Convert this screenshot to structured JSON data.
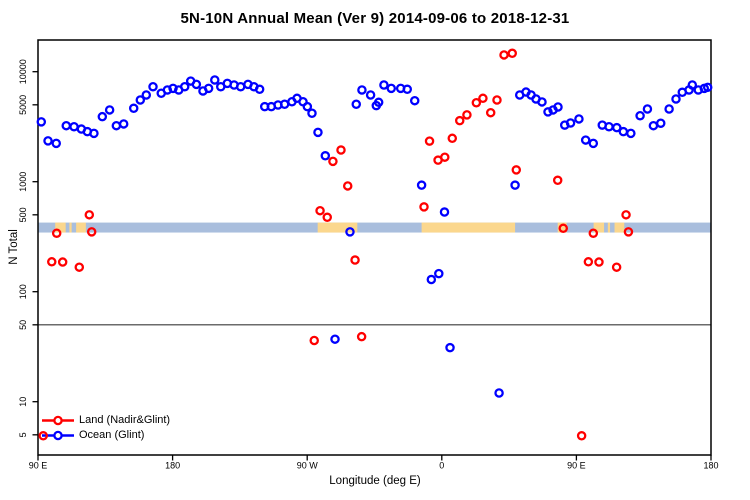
{
  "chart_data": {
    "type": "scatter",
    "title": "5N-10N Annual Mean (Ver 9)   2014-09-06 to 2018-12-31",
    "xlabel": "Longitude (deg E)",
    "ylabel": "N Total",
    "x_axis": {
      "range_deg": [
        90,
        540
      ],
      "ticks_deg": [
        90,
        180,
        270,
        360,
        450,
        540
      ],
      "tick_labels": [
        "90 E",
        "180",
        "90 W",
        "0",
        "90 E",
        "180"
      ],
      "note": "longitude axis wraps: 90E to 180, 90W, 0, 90E, 180"
    },
    "y_axis": {
      "scale": "log10",
      "ticks": [
        10000,
        5000,
        1000,
        500,
        100,
        50,
        10,
        5
      ],
      "tick_labels": [
        "10000",
        "5000",
        "1000",
        "500",
        "100",
        "50",
        "10",
        "5"
      ],
      "range": [
        3.2,
        21000
      ]
    },
    "grid": "off",
    "legend_position": "bottom-left",
    "reference_line_y": 50,
    "map_strip": {
      "description": "5N-10N latitude strip map band; ocean blue with land patches",
      "y_top_value": 425,
      "y_bottom_value": 345,
      "ocean_color": "#a9bedd",
      "land_color": "#fbd78d",
      "land_patches_deg": [
        [
          101.5,
          108.5
        ],
        [
          111.0,
          112.5
        ],
        [
          115.5,
          122.0
        ],
        [
          277.0,
          303.5
        ],
        [
          346.5,
          409.0
        ],
        [
          437.5,
          443.5
        ],
        [
          461.5,
          468.5
        ],
        [
          471.0,
          472.5
        ],
        [
          475.5,
          482.0
        ]
      ]
    },
    "series": [
      {
        "name": "Land (Nadir&Glint)",
        "color": "#ff0000",
        "marker": "open-circle",
        "points": [
          [
            93.5,
            4.9
          ],
          [
            99.2,
            187
          ],
          [
            102.5,
            340
          ],
          [
            106.5,
            186
          ],
          [
            117.6,
            167
          ],
          [
            124.3,
            500
          ],
          [
            125.9,
            350
          ],
          [
            274.7,
            36
          ],
          [
            278.6,
            545
          ],
          [
            283.4,
            475
          ],
          [
            287.2,
            1530
          ],
          [
            292.6,
            1940
          ],
          [
            297.1,
            915
          ],
          [
            302.0,
            194
          ],
          [
            306.4,
            39
          ],
          [
            348.1,
            590
          ],
          [
            351.8,
            2340
          ],
          [
            357.5,
            1570
          ],
          [
            362.0,
            1670
          ],
          [
            367.0,
            2480
          ],
          [
            372.0,
            3590
          ],
          [
            376.8,
            4050
          ],
          [
            383.1,
            5220
          ],
          [
            387.5,
            5730
          ],
          [
            392.7,
            4240
          ],
          [
            396.9,
            5530
          ],
          [
            401.6,
            14200
          ],
          [
            407.1,
            14700
          ],
          [
            409.8,
            1280
          ],
          [
            437.5,
            1030
          ],
          [
            441.2,
            377
          ],
          [
            453.5,
            4.9
          ],
          [
            458.0,
            187
          ],
          [
            461.3,
            340
          ],
          [
            465.1,
            186
          ],
          [
            476.9,
            167
          ],
          [
            483.2,
            500
          ],
          [
            484.8,
            350
          ]
        ]
      },
      {
        "name": "Ocean (Glint)",
        "color": "#0000ff",
        "marker": "open-circle",
        "points": [
          [
            92.2,
            3500
          ],
          [
            96.7,
            2350
          ],
          [
            102.2,
            2230
          ],
          [
            108.9,
            3230
          ],
          [
            114.1,
            3160
          ],
          [
            119.0,
            3010
          ],
          [
            123.0,
            2850
          ],
          [
            127.4,
            2750
          ],
          [
            133.0,
            3900
          ],
          [
            137.9,
            4490
          ],
          [
            142.4,
            3230
          ],
          [
            147.3,
            3350
          ],
          [
            154.0,
            4650
          ],
          [
            158.4,
            5530
          ],
          [
            162.4,
            6140
          ],
          [
            166.9,
            7300
          ],
          [
            172.4,
            6370
          ],
          [
            176.5,
            6820
          ],
          [
            180.3,
            7060
          ],
          [
            184.1,
            6820
          ],
          [
            188.1,
            7300
          ],
          [
            192.1,
            8220
          ],
          [
            195.9,
            7670
          ],
          [
            200.3,
            6680
          ],
          [
            204.1,
            7060
          ],
          [
            208.2,
            8410
          ],
          [
            212.2,
            7300
          ],
          [
            216.6,
            7830
          ],
          [
            221.1,
            7570
          ],
          [
            225.5,
            7300
          ],
          [
            230.4,
            7670
          ],
          [
            234.4,
            7300
          ],
          [
            238.2,
            6920
          ],
          [
            241.6,
            4810
          ],
          [
            246.0,
            4810
          ],
          [
            250.5,
            4980
          ],
          [
            254.9,
            5060
          ],
          [
            259.8,
            5330
          ],
          [
            263.2,
            5730
          ],
          [
            267.2,
            5330
          ],
          [
            270.1,
            4810
          ],
          [
            273.2,
            4190
          ],
          [
            277.2,
            2810
          ],
          [
            282.1,
            1720
          ],
          [
            288.6,
            37
          ],
          [
            298.6,
            350
          ],
          [
            302.8,
            5060
          ],
          [
            306.6,
            6820
          ],
          [
            312.4,
            6140
          ],
          [
            316.2,
            4920
          ],
          [
            317.8,
            5270
          ],
          [
            321.3,
            7570
          ],
          [
            326.2,
            7060
          ],
          [
            332.5,
            7060
          ],
          [
            336.9,
            6920
          ],
          [
            341.9,
            5450
          ],
          [
            346.5,
            930
          ],
          [
            353.0,
            129
          ],
          [
            358.0,
            146
          ],
          [
            361.8,
            530
          ],
          [
            365.5,
            31
          ],
          [
            398.3,
            12
          ],
          [
            409.0,
            930
          ],
          [
            412.1,
            6140
          ],
          [
            416.3,
            6530
          ],
          [
            419.7,
            6140
          ],
          [
            423.0,
            5650
          ],
          [
            427.0,
            5310
          ],
          [
            431.0,
            4310
          ],
          [
            434.4,
            4490
          ],
          [
            437.7,
            4780
          ],
          [
            442.2,
            3270
          ],
          [
            446.1,
            3420
          ],
          [
            451.7,
            3720
          ],
          [
            456.2,
            2390
          ],
          [
            461.3,
            2230
          ],
          [
            467.3,
            3270
          ],
          [
            471.8,
            3160
          ],
          [
            477.0,
            3100
          ],
          [
            481.4,
            2850
          ],
          [
            486.4,
            2750
          ],
          [
            492.6,
            3980
          ],
          [
            497.5,
            4580
          ],
          [
            501.5,
            3230
          ],
          [
            506.4,
            3400
          ],
          [
            512.0,
            4580
          ],
          [
            516.6,
            5650
          ],
          [
            520.8,
            6500
          ],
          [
            525.3,
            6820
          ],
          [
            527.5,
            7570
          ],
          [
            531.5,
            6820
          ],
          [
            535.5,
            7060
          ],
          [
            537.8,
            7210
          ]
        ]
      }
    ]
  },
  "legend": {
    "items": [
      {
        "label": "Land (Nadir&Glint)",
        "color": "#ff0000"
      },
      {
        "label": "Ocean (Glint)",
        "color": "#0000ff"
      }
    ]
  },
  "colors": {
    "axis": "#000000",
    "reference_line": "#3a3a3a",
    "background": "#ffffff"
  }
}
